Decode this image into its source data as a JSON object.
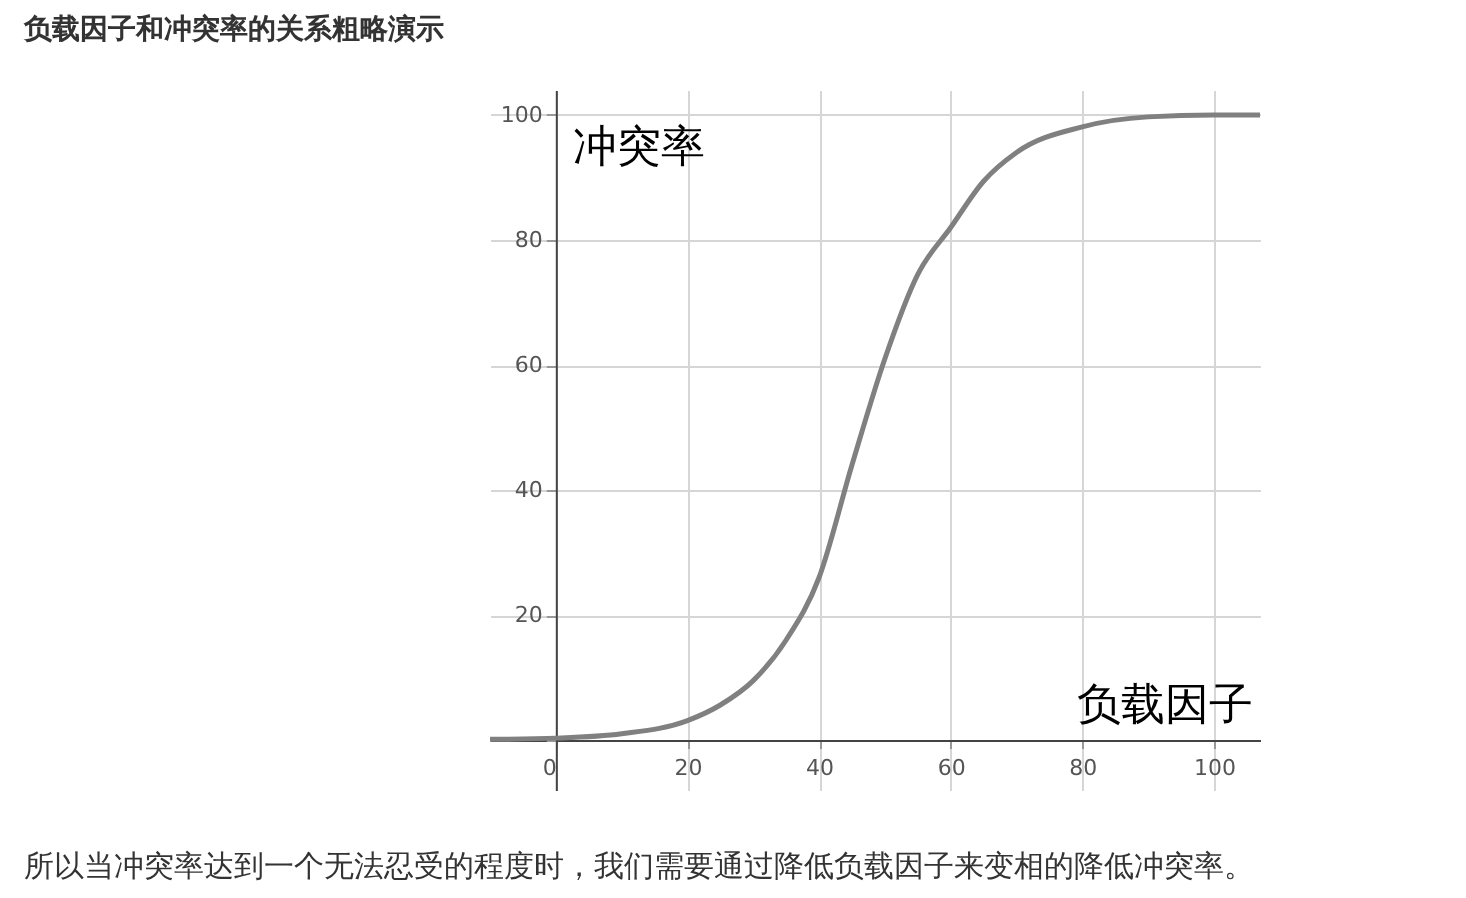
{
  "chart_data": {
    "type": "line",
    "title": "负载因子和冲突率的关系粗略演示",
    "xlabel": "负载因子",
    "ylabel": "冲突率",
    "annotations": [
      "所以当冲突率达到一个无法忍受的程度时，我们需要通过降低负载因子来变相的降低冲突率。"
    ],
    "x": [
      -10,
      0,
      10,
      20,
      25,
      30,
      35,
      40,
      45,
      50,
      55,
      60,
      65,
      70,
      80,
      90,
      100,
      107
    ],
    "series": [
      {
        "color": "#808080",
        "values": [
          0.1,
          0.3,
          1,
          3.1,
          5.6,
          9.5,
          16,
          26,
          44,
          61,
          74.5,
          82,
          89.4,
          94,
          98.1,
          99.7,
          100,
          100
        ]
      }
    ],
    "xlim": [
      -10,
      107
    ],
    "ylim": [
      -8,
      104
    ],
    "xticks": [
      0,
      20,
      40,
      60,
      80,
      100
    ],
    "yticks": [
      {
        "value": 0,
        "label": null
      },
      20,
      40,
      60,
      80,
      100
    ],
    "grid": true,
    "marker": "none",
    "line_style": "solid"
  }
}
